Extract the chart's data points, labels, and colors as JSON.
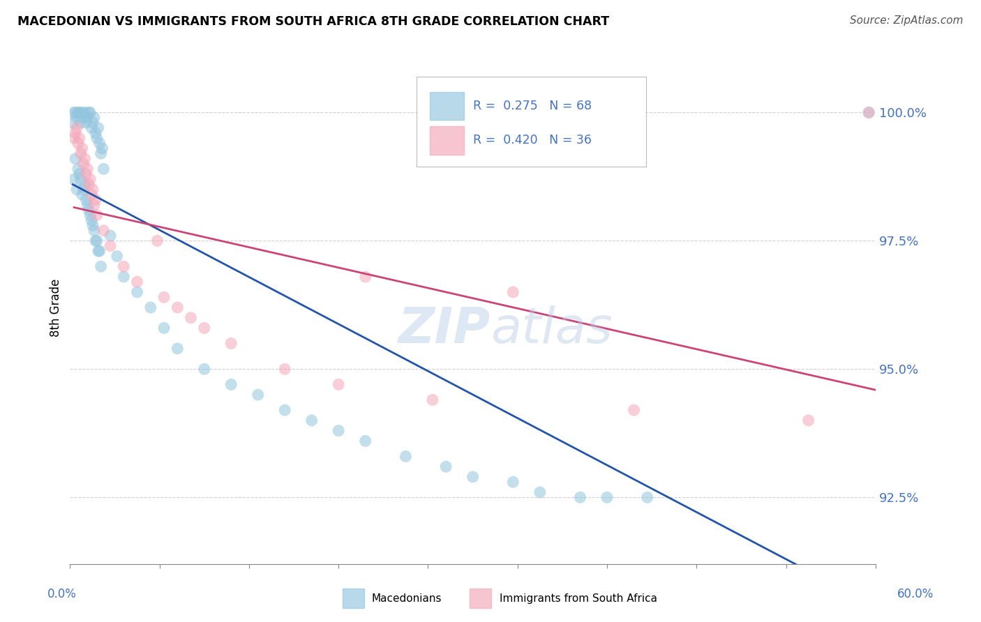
{
  "title": "MACEDONIAN VS IMMIGRANTS FROM SOUTH AFRICA 8TH GRADE CORRELATION CHART",
  "source": "Source: ZipAtlas.com",
  "ylabel": "8th Grade",
  "ylabel_values": [
    92.5,
    95.0,
    97.5,
    100.0
  ],
  "xlim": [
    0.0,
    60.0
  ],
  "ylim": [
    91.2,
    101.2
  ],
  "legend_blue_r": "R =  0.275",
  "legend_blue_n": "N = 68",
  "legend_pink_r": "R =  0.420",
  "legend_pink_n": "N = 36",
  "legend_label_blue": "Macedonians",
  "legend_label_pink": "Immigrants from South Africa",
  "blue_color": "#92c5de",
  "pink_color": "#f4a6b8",
  "trend_blue": "#2255aa",
  "trend_pink": "#cc4477",
  "watermark_zip": "ZIP",
  "watermark_atlas": "atlas",
  "background_color": "#ffffff",
  "grid_color": "#cccccc",
  "text_color_blue": "#4472c4",
  "axis_color": "#888888",
  "blue_x": [
    0.2,
    0.3,
    0.4,
    0.5,
    0.6,
    0.7,
    0.8,
    0.9,
    1.0,
    1.1,
    1.2,
    1.3,
    1.4,
    1.5,
    1.6,
    1.7,
    1.8,
    1.9,
    2.0,
    2.1,
    2.2,
    2.3,
    2.4,
    2.5,
    0.3,
    0.5,
    0.7,
    0.9,
    1.1,
    1.3,
    1.5,
    1.7,
    1.9,
    2.1,
    2.3,
    0.4,
    0.6,
    0.8,
    1.0,
    1.2,
    1.4,
    1.6,
    1.8,
    2.0,
    2.2,
    3.0,
    3.5,
    4.0,
    5.0,
    6.0,
    7.0,
    8.0,
    10.0,
    12.0,
    14.0,
    16.0,
    18.0,
    20.0,
    22.0,
    25.0,
    28.0,
    30.0,
    33.0,
    35.0,
    38.0,
    40.0,
    43.0,
    59.5
  ],
  "blue_y": [
    99.8,
    100.0,
    100.0,
    99.9,
    100.0,
    100.0,
    99.8,
    100.0,
    99.9,
    100.0,
    99.8,
    99.9,
    100.0,
    100.0,
    99.7,
    99.8,
    99.9,
    99.6,
    99.5,
    99.7,
    99.4,
    99.2,
    99.3,
    98.9,
    98.7,
    98.5,
    98.8,
    98.4,
    98.6,
    98.2,
    98.0,
    97.8,
    97.5,
    97.3,
    97.0,
    99.1,
    98.9,
    98.7,
    98.5,
    98.3,
    98.1,
    97.9,
    97.7,
    97.5,
    97.3,
    97.6,
    97.2,
    96.8,
    96.5,
    96.2,
    95.8,
    95.4,
    95.0,
    94.7,
    94.5,
    94.2,
    94.0,
    93.8,
    93.6,
    93.3,
    93.1,
    92.9,
    92.8,
    92.6,
    92.5,
    92.5,
    92.5,
    100.0
  ],
  "pink_x": [
    0.3,
    0.5,
    0.7,
    0.9,
    1.1,
    1.3,
    1.5,
    1.7,
    1.9,
    0.4,
    0.6,
    0.8,
    1.0,
    1.2,
    1.4,
    1.6,
    1.8,
    2.0,
    2.5,
    3.0,
    4.0,
    5.0,
    6.5,
    7.0,
    8.0,
    9.0,
    10.0,
    12.0,
    16.0,
    20.0,
    22.0,
    27.0,
    33.0,
    42.0,
    55.0,
    59.5
  ],
  "pink_y": [
    99.5,
    99.7,
    99.5,
    99.3,
    99.1,
    98.9,
    98.7,
    98.5,
    98.3,
    99.6,
    99.4,
    99.2,
    99.0,
    98.8,
    98.6,
    98.4,
    98.2,
    98.0,
    97.7,
    97.4,
    97.0,
    96.7,
    97.5,
    96.4,
    96.2,
    96.0,
    95.8,
    95.5,
    95.0,
    94.7,
    96.8,
    94.4,
    96.5,
    94.2,
    94.0,
    100.0
  ]
}
